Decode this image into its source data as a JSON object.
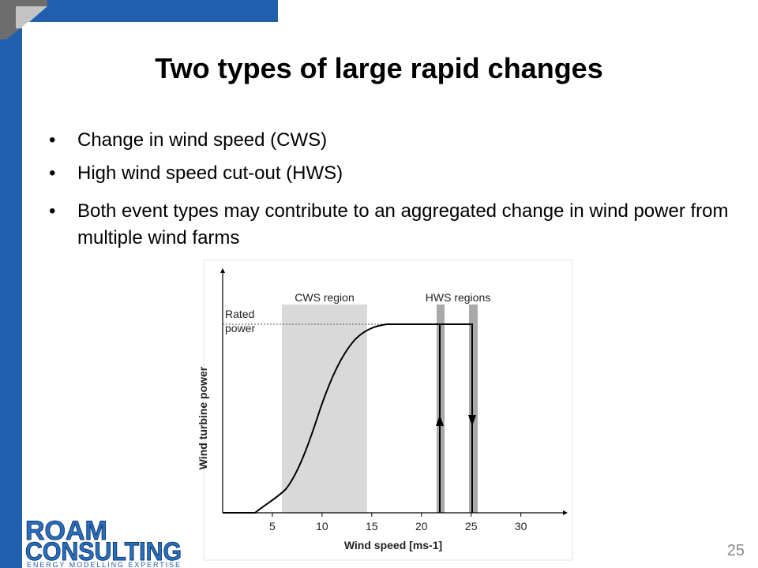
{
  "slide": {
    "title": "Two types of large rapid changes",
    "bullets": [
      "Change in wind speed (CWS)",
      "High wind speed cut-out (HWS)",
      "Both event types may contribute to an aggregated change in wind power from multiple wind farms"
    ],
    "page_number": "25"
  },
  "logo": {
    "line1": "ROAM",
    "line2": "CONSULTING",
    "tagline": "ENERGY MODELLING EXPERTISE"
  },
  "chart_data": {
    "type": "line",
    "xlabel": "Wind speed [ms-1]",
    "ylabel": "Wind turbine power",
    "cws_label": "CWS region",
    "hws_label": "HWS regions",
    "rated_label": "Rated power",
    "xlim": [
      0,
      34
    ],
    "xticks": [
      5,
      10,
      15,
      20,
      25,
      30
    ]
  }
}
